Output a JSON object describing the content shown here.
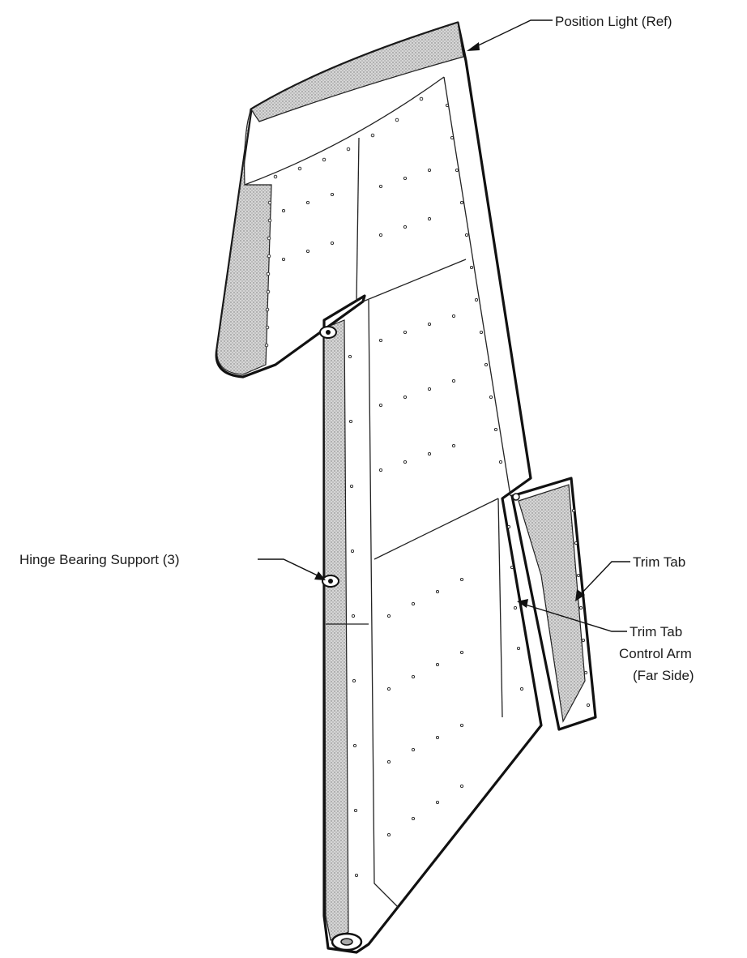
{
  "labels": {
    "position_light": "Position Light (Ref)",
    "hinge_bearing": "Hinge Bearing Support (3)",
    "trim_tab": "Trim Tab",
    "control_arm_line1": "Trim Tab",
    "control_arm_line2": "Control Arm",
    "control_arm_line3": "(Far Side)"
  }
}
